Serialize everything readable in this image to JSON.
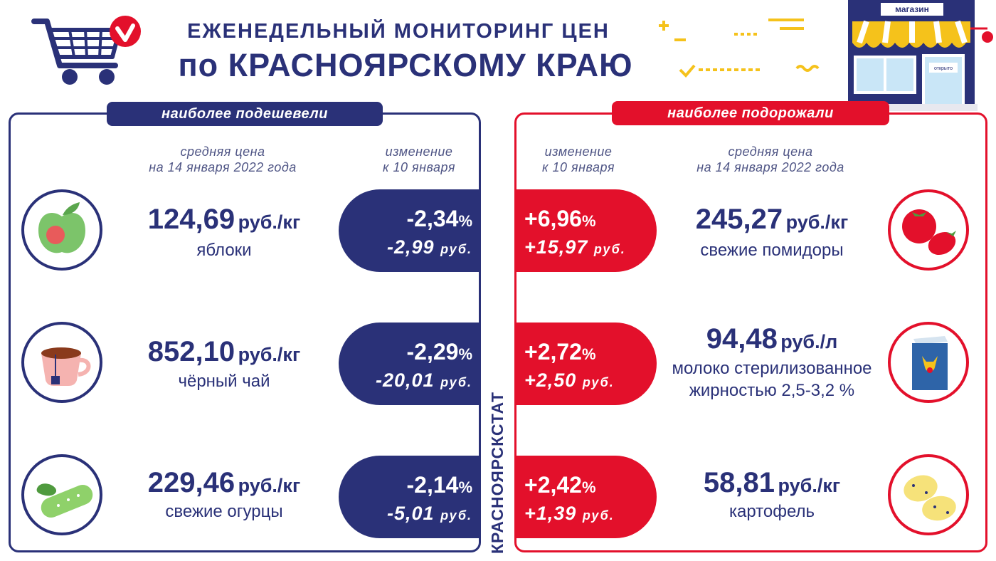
{
  "header": {
    "title_line1": "ЕЖЕНЕДЕЛЬНЫЙ МОНИТОРИНГ ЦЕН",
    "title_line2": "по КРАСНОЯРСКОМУ КРАЮ",
    "shop_sign": "магазин",
    "door_sign": "открыто"
  },
  "left": {
    "ribbon": "наиболее подешевели",
    "col_price_line1": "средняя цена",
    "col_price_line2": "на 14 января 2022 года",
    "col_change_line1": "изменение",
    "col_change_line2": "к 10 января",
    "items": [
      {
        "price": "124,69",
        "unit": "руб./кг",
        "name": "яблоки",
        "pct": "-2,34",
        "pct_sign": "%",
        "rub": "-2,99",
        "rub_unit": "руб.",
        "icon": "apple-icon"
      },
      {
        "price": "852,10",
        "unit": "руб./кг",
        "name": "чёрный чай",
        "pct": "-2,29",
        "pct_sign": "%",
        "rub": "-20,01",
        "rub_unit": "руб.",
        "icon": "tea-cup-icon"
      },
      {
        "price": "229,46",
        "unit": "руб./кг",
        "name": "свежие огурцы",
        "pct": "-2,14",
        "pct_sign": "%",
        "rub": "-5,01",
        "rub_unit": "руб.",
        "icon": "cucumber-icon"
      }
    ]
  },
  "right": {
    "ribbon": "наиболее подорожали",
    "col_change_line1": "изменение",
    "col_change_line2": "к 10 января",
    "col_price_line1": "средняя цена",
    "col_price_line2": "на 14 января 2022 года",
    "items": [
      {
        "price": "245,27",
        "unit": "руб./кг",
        "name": "свежие помидоры",
        "name2": "",
        "pct": "+6,96",
        "pct_sign": "%",
        "rub": "+15,97",
        "rub_unit": "руб.",
        "icon": "tomato-icon"
      },
      {
        "price": "94,48",
        "unit": "руб./л",
        "name": "молоко стерилизованное",
        "name2": "жирностью 2,5-3,2 %",
        "pct": "+2,72",
        "pct_sign": "%",
        "rub": "+2,50",
        "rub_unit": "руб.",
        "icon": "milk-carton-icon"
      },
      {
        "price": "58,81",
        "unit": "руб./кг",
        "name": "картофель",
        "name2": "",
        "pct": "+2,42",
        "pct_sign": "%",
        "rub": "+1,39",
        "rub_unit": "руб.",
        "icon": "potato-icon"
      }
    ]
  },
  "source_label": "КРАСНОЯРСКСТАТ",
  "colors": {
    "navy": "#2a3178",
    "red": "#e3102b",
    "yellow": "#f5c21b"
  }
}
